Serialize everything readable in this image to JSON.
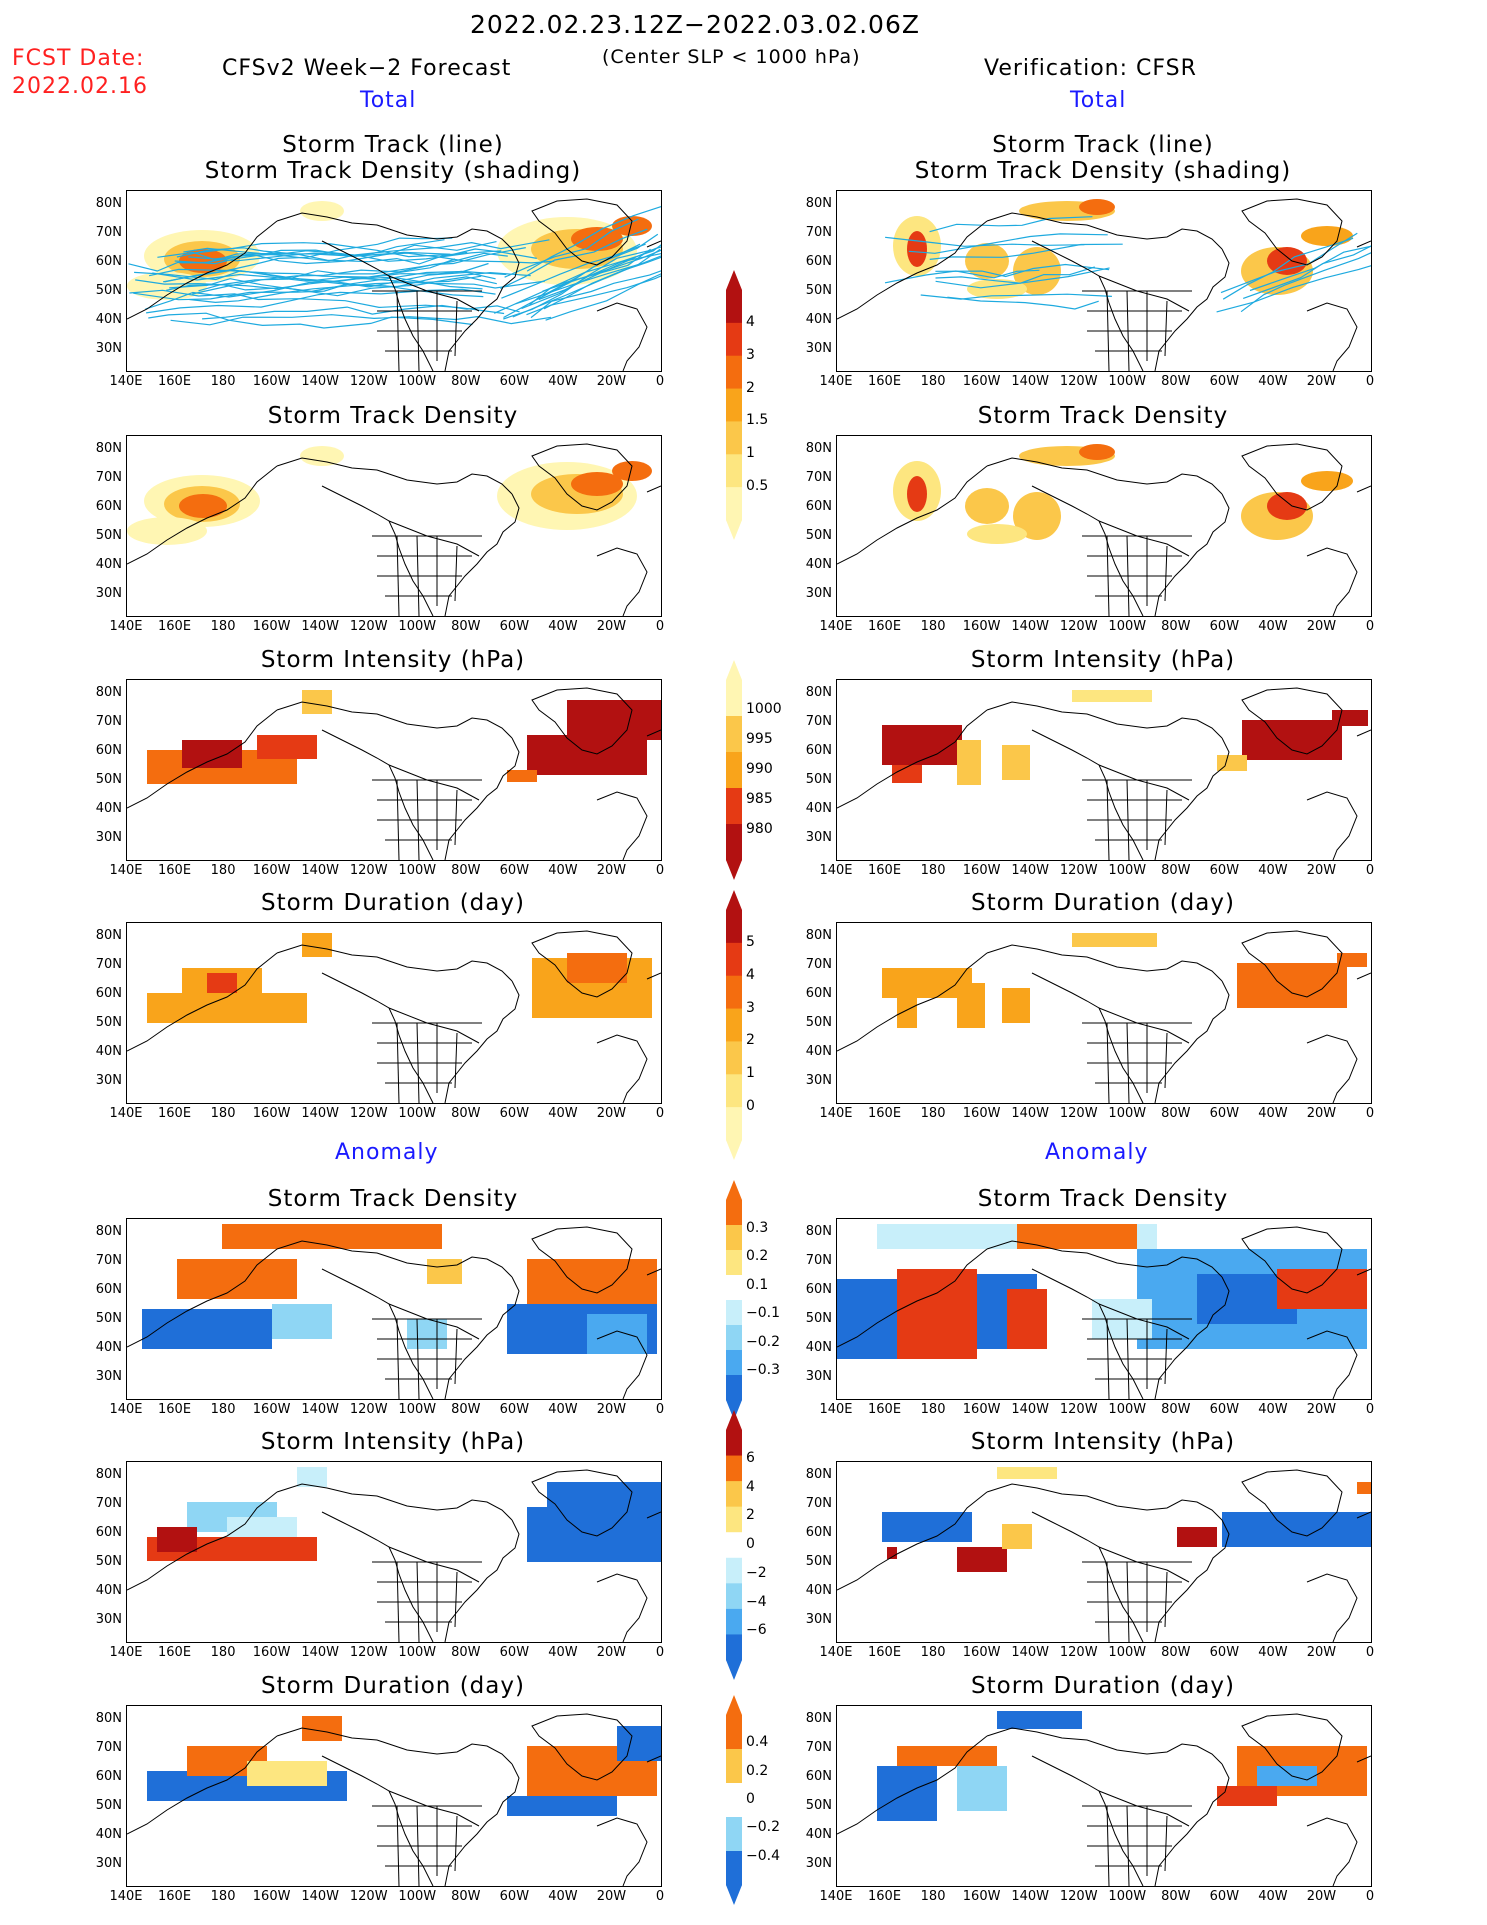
{
  "header": {
    "fcst_label": "FCST Date:",
    "fcst_date": "2022.02.16",
    "period": "2022.02.23.12Z−2022.03.02.06Z",
    "subtitle": "(Center SLP < 1000 hPa)",
    "left_title": "CFSv2 Week−2 Forecast",
    "right_title": "Verification: CFSR",
    "left_total": "Total",
    "right_total": "Total",
    "left_anomaly": "Anomaly",
    "right_anomaly": "Anomaly"
  },
  "panels": {
    "track_line_title1": "Storm Track (line)",
    "track_line_title2": "Storm Track Density (shading)",
    "density": "Storm Track Density",
    "intensity": "Storm Intensity (hPa)",
    "duration": "Storm Duration (day)"
  },
  "axes": {
    "lat_labels": [
      "80N",
      "70N",
      "60N",
      "50N",
      "40N",
      "30N"
    ],
    "lon_labels": [
      "140E",
      "160E",
      "180",
      "160W",
      "140W",
      "120W",
      "100W",
      "80W",
      "60W",
      "40W",
      "20W",
      "0"
    ]
  },
  "colorbars": {
    "density_total": [
      "4",
      "3",
      "2",
      "1.5",
      "1",
      "0.5"
    ],
    "intensity_total": [
      "1000",
      "995",
      "990",
      "985",
      "980"
    ],
    "duration_total": [
      "5",
      "4",
      "3",
      "2",
      "1",
      "0"
    ],
    "density_anom": [
      "0.3",
      "0.2",
      "0.1",
      "−0.1",
      "−0.2",
      "−0.3"
    ],
    "intensity_anom": [
      "6",
      "4",
      "2",
      "0",
      "−2",
      "−4",
      "−6"
    ],
    "duration_anom": [
      "0.4",
      "0.2",
      "0",
      "−0.2",
      "−0.4"
    ]
  },
  "colors": {
    "warm": [
      "#fff6b3",
      "#fde680",
      "#fbc74a",
      "#f9a41b",
      "#f46d0f",
      "#e53a14",
      "#b21111"
    ],
    "cool": [
      "#c8effa",
      "#8fd6f4",
      "#4aa9f0",
      "#1f6fd8"
    ],
    "track_line": "#1eaadf"
  }
}
